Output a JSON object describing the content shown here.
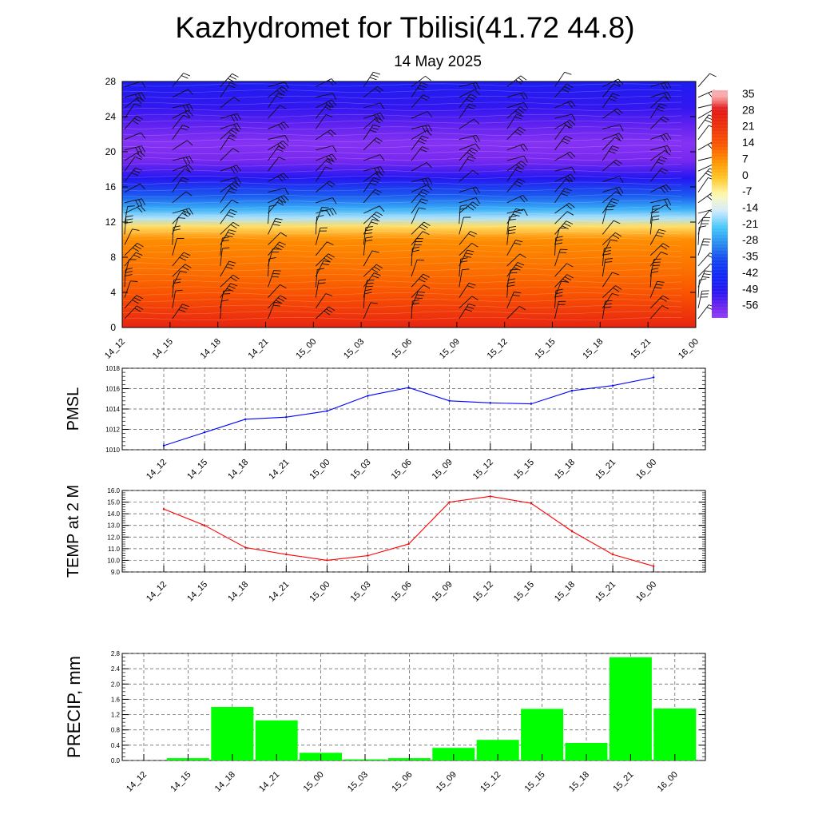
{
  "title": "Kazhydromet for Tbilisi(41.72 44.8)",
  "subtitle": "14 May 2025",
  "time_labels": [
    "14_12",
    "14_15",
    "14_18",
    "14_21",
    "15_00",
    "15_03",
    "15_06",
    "15_09",
    "15_12",
    "15_15",
    "15_18",
    "15_21",
    "16_00"
  ],
  "colors": {
    "pmsl_line": "#0000ff",
    "temp_line": "#ff0000",
    "precip_bar": "#00ff00",
    "grid": "#555555"
  },
  "chart_data": [
    {
      "type": "heatmap",
      "name": "temperature-wind-profile",
      "x_categories": [
        "14_12",
        "14_15",
        "14_18",
        "14_21",
        "15_00",
        "15_03",
        "15_06",
        "15_09",
        "15_12",
        "15_15",
        "15_18",
        "15_21",
        "16_00"
      ],
      "ylim": [
        0,
        28
      ],
      "yticks": [
        0,
        4,
        8,
        12,
        16,
        20,
        24,
        28
      ],
      "colorbar_labels": [
        "35",
        "28",
        "21",
        "14",
        "7",
        "0",
        "-7",
        "-14",
        "-21",
        "-28",
        "-35",
        "-42",
        "-49",
        "-56"
      ],
      "colorbar_values": [
        35,
        28,
        21,
        14,
        7,
        0,
        -7,
        -14,
        -21,
        -28,
        -35,
        -42,
        -49,
        -56
      ],
      "temperature_profile": [
        {
          "y": 0,
          "value": 26
        },
        {
          "y": 2,
          "value": 20
        },
        {
          "y": 4,
          "value": 15
        },
        {
          "y": 6,
          "value": 12
        },
        {
          "y": 8,
          "value": 10
        },
        {
          "y": 10,
          "value": 8
        },
        {
          "y": 11.5,
          "value": -3
        },
        {
          "y": 12.5,
          "value": -16
        },
        {
          "y": 13.5,
          "value": -24
        },
        {
          "y": 15,
          "value": -33
        },
        {
          "y": 17,
          "value": -48
        },
        {
          "y": 19,
          "value": -56
        },
        {
          "y": 21,
          "value": -58
        },
        {
          "y": 23,
          "value": -54
        },
        {
          "y": 25,
          "value": -50
        },
        {
          "y": 28,
          "value": -46
        }
      ],
      "wind_barbs": "shown"
    },
    {
      "type": "line",
      "name": "pmsl",
      "ylabel": "PMSL",
      "x": [
        "14_12",
        "14_15",
        "14_18",
        "14_21",
        "15_00",
        "15_03",
        "15_06",
        "15_09",
        "15_12",
        "15_15",
        "15_18",
        "15_21",
        "16_00"
      ],
      "values": [
        1010.4,
        1011.7,
        1013.0,
        1013.2,
        1013.8,
        1015.3,
        1016.1,
        1014.8,
        1014.6,
        1014.5,
        1015.8,
        1016.3,
        1017.1
      ],
      "ylim": [
        1010,
        1018
      ],
      "yticks": [
        "1010",
        "1012",
        "1014",
        "1016",
        "1018"
      ],
      "grid": true
    },
    {
      "type": "line",
      "name": "temp2m",
      "ylabel": "TEMP at 2 M",
      "x": [
        "14_12",
        "14_15",
        "14_18",
        "14_21",
        "15_00",
        "15_03",
        "15_06",
        "15_09",
        "15_12",
        "15_15",
        "15_18",
        "15_21",
        "16_00"
      ],
      "values": [
        14.4,
        13.0,
        11.1,
        10.5,
        10.0,
        10.4,
        11.4,
        15.0,
        15.5,
        14.9,
        12.5,
        10.5,
        9.5
      ],
      "ylim": [
        9.0,
        16.0
      ],
      "yticks": [
        "9.0",
        "10.0",
        "11.0",
        "12.0",
        "13.0",
        "14.0",
        "15.0",
        "16.0"
      ],
      "grid": true
    },
    {
      "type": "bar",
      "name": "precip",
      "ylabel": "PRECIP, mm",
      "categories": [
        "14_12",
        "14_15",
        "14_18",
        "14_21",
        "15_00",
        "15_03",
        "15_06",
        "15_09",
        "15_12",
        "15_15",
        "15_18",
        "15_21",
        "16_00"
      ],
      "values": [
        0.0,
        0.06,
        1.4,
        1.05,
        0.2,
        0.03,
        0.06,
        0.33,
        0.54,
        1.35,
        0.46,
        2.7,
        1.36
      ],
      "ylim": [
        0,
        2.8
      ],
      "yticks": [
        "0.0",
        "0.4",
        "0.8",
        "1.2",
        "1.6",
        "2.0",
        "2.4",
        "2.8"
      ],
      "grid": true
    }
  ]
}
